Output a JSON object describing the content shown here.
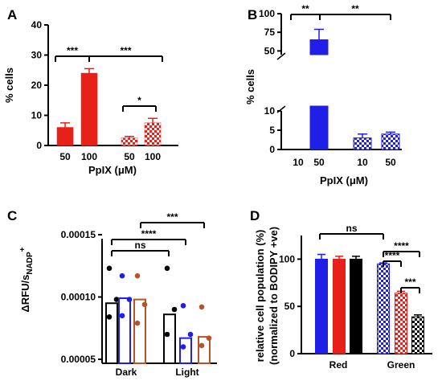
{
  "figure": {
    "panels": [
      {
        "id": "A",
        "label": "A"
      },
      {
        "id": "B",
        "label": "B"
      },
      {
        "id": "C",
        "label": "C"
      },
      {
        "id": "D",
        "label": "D"
      }
    ]
  },
  "chart_data": [
    {
      "panel": "A",
      "type": "bar",
      "ylabel": "% cells",
      "xlabel": "PpIX (μM)",
      "ylim": [
        0,
        40
      ],
      "yticks": [
        0,
        10,
        20,
        30,
        40
      ],
      "categories": [
        "50",
        "100",
        "50",
        "100"
      ],
      "groups": [
        "solid",
        "solid",
        "hatched",
        "hatched"
      ],
      "values": [
        6,
        24,
        2.5,
        7.5
      ],
      "errors": [
        1.5,
        1.5,
        0.5,
        1.5
      ],
      "colors": [
        "#e8201a",
        "#e8201a",
        "#e8201a",
        "#e8201a"
      ],
      "fills": [
        "solid",
        "solid",
        "checker",
        "checker"
      ],
      "significance": [
        {
          "from": 0,
          "to": 1,
          "label": "***"
        },
        {
          "from": 1,
          "to": 3,
          "label": "***"
        },
        {
          "from": 2,
          "to": 3,
          "label": "*"
        }
      ]
    },
    {
      "panel": "B",
      "type": "bar",
      "ylabel": "% cells",
      "xlabel": "PpIX (μM)",
      "ylim": [
        0,
        100
      ],
      "axis_break": [
        10,
        45
      ],
      "yticks": [
        0,
        5,
        10,
        50,
        75,
        100
      ],
      "categories": [
        "10",
        "50",
        "10",
        "50"
      ],
      "values": [
        0,
        65,
        3,
        4
      ],
      "errors": [
        0,
        14,
        1,
        0.5
      ],
      "colors": [
        "#1f1fe8",
        "#1f1fe8",
        "#1f1fe8",
        "#1f1fe8"
      ],
      "fills": [
        "solid",
        "solid",
        "checker",
        "checker"
      ],
      "significance": [
        {
          "from": 0,
          "to": 1,
          "label": "**"
        },
        {
          "from": 1,
          "to": 3,
          "label": "**"
        }
      ]
    },
    {
      "panel": "C",
      "type": "bar",
      "ylabel_main": "ΔRFU/s",
      "ylabel_sub": "NADP",
      "ylabel_sup": "+",
      "ylim": [
        5e-05,
        0.00015
      ],
      "yticks": [
        "0.00005",
        "0.00010",
        "0.00015"
      ],
      "ytick_values": [
        5e-05,
        0.0001,
        0.00015
      ],
      "categories": [
        "Dark",
        "Light"
      ],
      "series": [
        {
          "name": "black",
          "color": "#000000",
          "values": [
            9.5e-05,
            8.6e-05
          ],
          "points": [
            [
              0.000123,
              9.8e-05,
              8.4e-05
            ],
            [
              0.000123,
              9e-05,
              7e-05
            ]
          ]
        },
        {
          "name": "blue",
          "color": "#1f1fe8",
          "values": [
            9.9e-05,
            6.7e-05
          ],
          "points": [
            [
              0.000117,
              9.8e-05,
              8.5e-05
            ],
            [
              9.3e-05,
              7e-05,
              6e-05
            ]
          ]
        },
        {
          "name": "brown",
          "color": "#b5542a",
          "values": [
            9.8e-05,
            6.8e-05
          ],
          "points": [
            [
              0.000117,
              9.4e-05,
              7.9e-05
            ],
            [
              9.2e-05,
              6.7e-05,
              6.1e-05
            ]
          ]
        }
      ],
      "significance": [
        {
          "label": "ns"
        },
        {
          "label": "****"
        },
        {
          "label": "***"
        }
      ]
    },
    {
      "panel": "D",
      "type": "bar",
      "ylabel": "relative cell population (%)",
      "ylabel2": "(normalized to BODIPY +ve)",
      "ylim": [
        0,
        125
      ],
      "yticks": [
        0,
        50,
        100
      ],
      "categories": [
        "Red",
        "Green"
      ],
      "series": [
        {
          "name": "blue",
          "color": "#1f1fe8",
          "values": [
            100,
            95
          ],
          "errors": [
            5,
            1
          ]
        },
        {
          "name": "red",
          "color": "#e8201a",
          "values": [
            100,
            64
          ],
          "errors": [
            3,
            2
          ]
        },
        {
          "name": "black",
          "color": "#000000",
          "values": [
            100,
            39
          ],
          "errors": [
            3,
            2
          ]
        }
      ],
      "fills_by_category": [
        "solid",
        "checker"
      ],
      "significance": [
        {
          "label": "ns"
        },
        {
          "label": "****"
        },
        {
          "label": "****"
        },
        {
          "label": "***"
        }
      ]
    }
  ]
}
